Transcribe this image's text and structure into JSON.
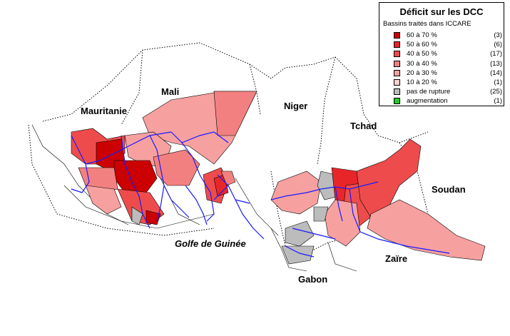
{
  "labels": {
    "mauritanie": "Mauritanie",
    "mali": "Mali",
    "niger": "Niger",
    "tchad": "Tchad",
    "soudan": "Soudan",
    "golfe": "Golfe de Guinée",
    "zaire": "Zaïre",
    "gabon": "Gabon"
  },
  "legend": {
    "title": "Déficit sur les DCC",
    "subtitle": "Bassins traités dans ICCARE",
    "items": [
      {
        "label": "60  à 70 %",
        "count": "(3)",
        "color": "#cc0000"
      },
      {
        "label": "50  à 60 %",
        "count": "(6)",
        "color": "#e8262a"
      },
      {
        "label": "40  à 50 %",
        "count": "(17)",
        "color": "#ee4c4c"
      },
      {
        "label": "30  à 40 %",
        "count": "(13)",
        "color": "#f38080"
      },
      {
        "label": "20  à 30 %",
        "count": "(14)",
        "color": "#f7a0a0"
      },
      {
        "label": "10  à 20 %",
        "count": "(1)",
        "color": "#fbd0d0"
      },
      {
        "label": "pas de rupture",
        "count": "(25)",
        "color": "#bcbcbc"
      },
      {
        "label": "augmentation",
        "count": "(1)",
        "color": "#22cc22"
      }
    ]
  },
  "colors": {
    "river": "#1a1aff",
    "border": "#000000"
  }
}
